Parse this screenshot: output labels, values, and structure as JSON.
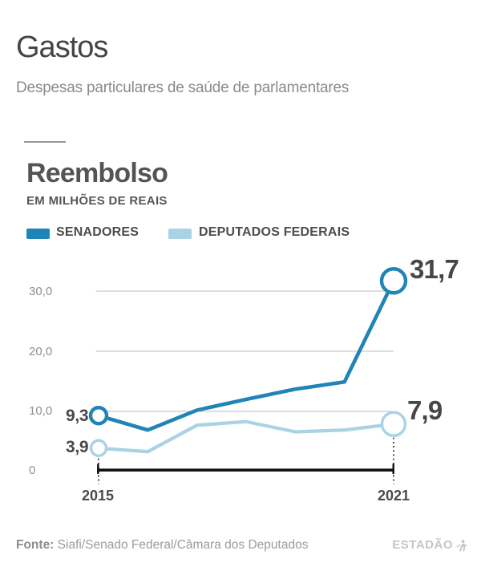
{
  "header": {
    "title": "Gastos",
    "subtitle": "Despesas particulares de saúde de parlamentares"
  },
  "chart_data": {
    "type": "line",
    "title": "Reembolso",
    "ylabel": "EM MILHÕES DE REAIS",
    "x": [
      2015,
      2016,
      2017,
      2018,
      2019,
      2020,
      2021
    ],
    "xtick_labels": [
      "2015",
      "2021"
    ],
    "series": [
      {
        "name": "SENADORES",
        "color": "#2084b6",
        "values": [
          9.3,
          6.9,
          10.2,
          12.0,
          13.7,
          14.9,
          31.7
        ],
        "endpoint_labels": {
          "first": "9,3",
          "last": "31,7"
        }
      },
      {
        "name": "DEPUTADOS FEDERAIS",
        "color": "#a9d2e4",
        "values": [
          3.9,
          3.3,
          7.7,
          8.3,
          6.6,
          6.9,
          7.9
        ],
        "endpoint_labels": {
          "first": "3,9",
          "last": "7,9"
        }
      }
    ],
    "yticks": [
      {
        "value": 0,
        "label": "0"
      },
      {
        "value": 10,
        "label": "10,0"
      },
      {
        "value": 20,
        "label": "20,0"
      },
      {
        "value": 30,
        "label": "30,0"
      }
    ],
    "ylim": [
      0,
      35
    ],
    "grid": "horizontal",
    "legend_position": "top"
  },
  "footer": {
    "source_label": "Fonte:",
    "source": "Siafi/Senado Federal/Câmara dos Deputados",
    "brand": "ESTADÃO"
  }
}
